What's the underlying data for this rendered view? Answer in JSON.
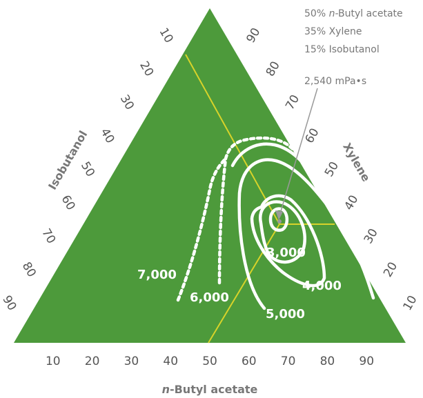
{
  "chart_data": {
    "type": "ternary-contour",
    "title": "",
    "colors": {
      "fill": "#4d9a3b",
      "guide": "#d8d32a",
      "contour": "#ffffff",
      "pointer": "#999999",
      "text": "#555555"
    },
    "axes": {
      "bottom": {
        "label_prefix": "n",
        "label_suffix": "-Butyl acetate",
        "ticks": [
          "10",
          "20",
          "30",
          "40",
          "50",
          "60",
          "70",
          "80",
          "90"
        ]
      },
      "left": {
        "label": "Isobutanol",
        "ticks": [
          "10",
          "20",
          "30",
          "40",
          "50",
          "60",
          "70",
          "80",
          "90"
        ]
      },
      "right": {
        "label": "Xylene",
        "ticks": [
          "90",
          "80",
          "70",
          "60",
          "50",
          "40",
          "30",
          "20",
          "10"
        ]
      }
    },
    "optimum": {
      "lines": [
        {
          "prefix": "50% ",
          "italic": "n",
          "suffix": "-Butyl acetate"
        },
        {
          "prefix": "35% Xylene",
          "italic": "",
          "suffix": ""
        },
        {
          "prefix": "15% Isobutanol",
          "italic": "",
          "suffix": ""
        }
      ],
      "viscosity": "2,540 mPa•s"
    },
    "contours": [
      {
        "label": "3,000",
        "style": "solid"
      },
      {
        "label": "4,000",
        "style": "solid"
      },
      {
        "label": "5,000",
        "style": "solid"
      },
      {
        "label": "6,000",
        "style": "dotted"
      },
      {
        "label": "7,000",
        "style": "dotted"
      }
    ]
  }
}
